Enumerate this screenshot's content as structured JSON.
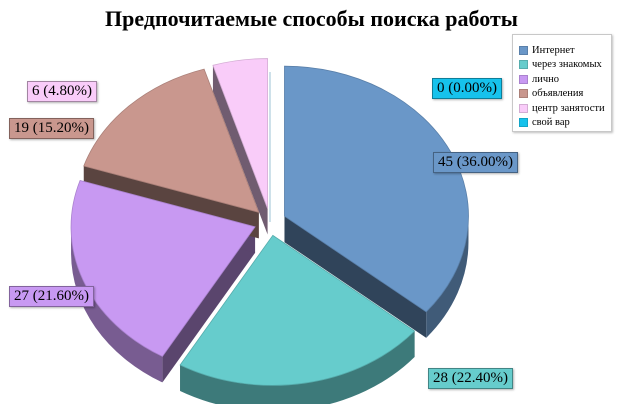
{
  "chart_data": {
    "type": "pie",
    "title": "Предпочитаемые способы поиска работы",
    "categories": [
      "Интернет",
      "через знакомых",
      "лично",
      "объявления",
      "центр занятости",
      "свой вар"
    ],
    "values": [
      45,
      28,
      27,
      19,
      6,
      0
    ],
    "labels": [
      "45 (36.00%)",
      "28 (22.40%)",
      "27 (21.60%)",
      "19 (15.20%)",
      "6 (4.80%)",
      "0 (0.00%)"
    ],
    "colors": [
      "#6a97c8",
      "#66cccc",
      "#c899f2",
      "#c9978e",
      "#f9ccf9",
      "#16c2ec"
    ],
    "legend": "top-right",
    "exploded": true,
    "style": "3d"
  }
}
